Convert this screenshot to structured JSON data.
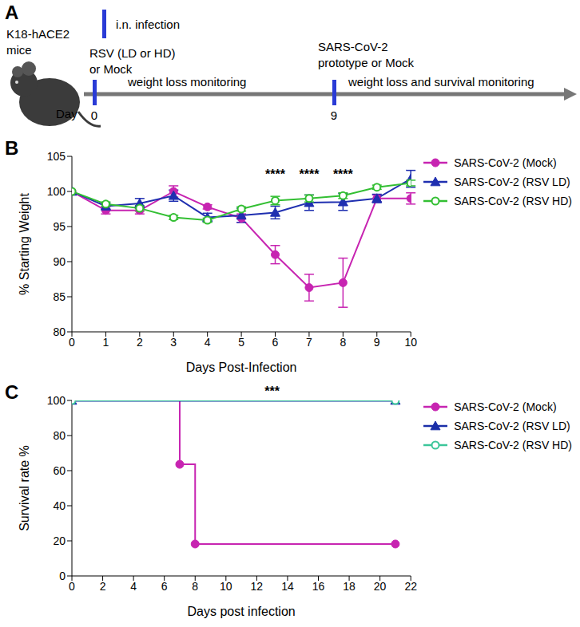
{
  "panel_labels": [
    "A",
    "B",
    "C"
  ],
  "diagram": {
    "subject_lines": [
      "K18-hACE2",
      "mice"
    ],
    "legend_text": "i.n. infection",
    "day_label": "Day",
    "events": [
      {
        "day": 0,
        "lines": [
          "RSV (LD or HD)",
          "or Mock"
        ]
      },
      {
        "day": 9,
        "lines": [
          "SARS-CoV-2",
          "prototype or Mock"
        ]
      }
    ],
    "phases": [
      "weight loss monitoring",
      "weight loss and survival monitoring"
    ]
  },
  "chart_data": [
    {
      "type": "line",
      "x_label": "Days Post-Infection",
      "y_label": "% Starting Weight",
      "x": [
        0,
        1,
        2,
        3,
        4,
        5,
        6,
        7,
        8,
        9,
        10
      ],
      "xlim": [
        0,
        10
      ],
      "xticks": [
        0,
        1,
        2,
        3,
        4,
        5,
        6,
        7,
        8,
        9,
        10
      ],
      "ylim": [
        80,
        105
      ],
      "yticks": [
        80,
        85,
        90,
        95,
        100,
        105
      ],
      "legend": "right",
      "annotations": [
        {
          "text": "****",
          "x": 6,
          "y": 102.5
        },
        {
          "text": "****",
          "x": 7,
          "y": 102.5
        },
        {
          "text": "****",
          "x": 8,
          "y": 102.5
        }
      ],
      "series": [
        {
          "name": "SARS-CoV-2 (Mock)",
          "color": "#c724b1",
          "marker": "circle",
          "values": [
            100,
            97.3,
            97.3,
            100,
            97.8,
            96.2,
            91,
            86.3,
            87,
            99,
            99
          ],
          "errors": [
            0,
            0.5,
            0.5,
            0.8,
            0.3,
            0.6,
            1.3,
            1.9,
            3.5,
            0.5,
            0.8
          ]
        },
        {
          "name": "SARS-CoV-2 (RSV LD)",
          "color": "#1f2fb0",
          "marker": "triangle",
          "values": [
            100,
            97.9,
            98.3,
            99.4,
            96.3,
            96.6,
            97,
            98.4,
            98.5,
            99,
            101.8
          ],
          "errors": [
            0,
            0.4,
            0.7,
            0.8,
            0.6,
            1,
            0.9,
            1.1,
            1.2,
            0.6,
            1.2
          ]
        },
        {
          "name": "SARS-CoV-2 (RSV HD)",
          "color": "#33bf33",
          "marker": "open_circle",
          "values": [
            100,
            98.2,
            97.6,
            96.3,
            95.9,
            97.5,
            98.7,
            99,
            99.4,
            100.6,
            101.2
          ],
          "errors": [
            0,
            0.3,
            0.4,
            0.3,
            0.3,
            0.3,
            0.6,
            0.5,
            0.4,
            0.3,
            0.4
          ]
        }
      ]
    },
    {
      "type": "line",
      "line_style": "step",
      "x_label": "Days post infection",
      "y_label": "Survival rate %",
      "xlim": [
        0,
        22
      ],
      "xticks": [
        0,
        2,
        4,
        6,
        8,
        10,
        12,
        14,
        16,
        18,
        20,
        22
      ],
      "ylim": [
        0,
        100
      ],
      "yticks": [
        0,
        20,
        40,
        60,
        80,
        100
      ],
      "legend": "right",
      "annotations": [
        {
          "text": "***",
          "x": 13,
          "y": 100
        }
      ],
      "series": [
        {
          "name": "SARS-CoV-2 (Mock)",
          "color": "#c724b1",
          "marker": "circle",
          "x": [
            0,
            7,
            8,
            21
          ],
          "values": [
            100,
            63.6,
            18.2,
            18.2
          ]
        },
        {
          "name": "SARS-CoV-2 (RSV LD)",
          "color": "#1a2ea8",
          "marker": "triangle",
          "x": [
            0,
            21
          ],
          "values": [
            100,
            100
          ]
        },
        {
          "name": "SARS-CoV-2 (RSV HD)",
          "color": "#3cc69a",
          "marker": "open_circle",
          "x": [
            0,
            21
          ],
          "values": [
            100,
            100
          ]
        }
      ]
    }
  ]
}
